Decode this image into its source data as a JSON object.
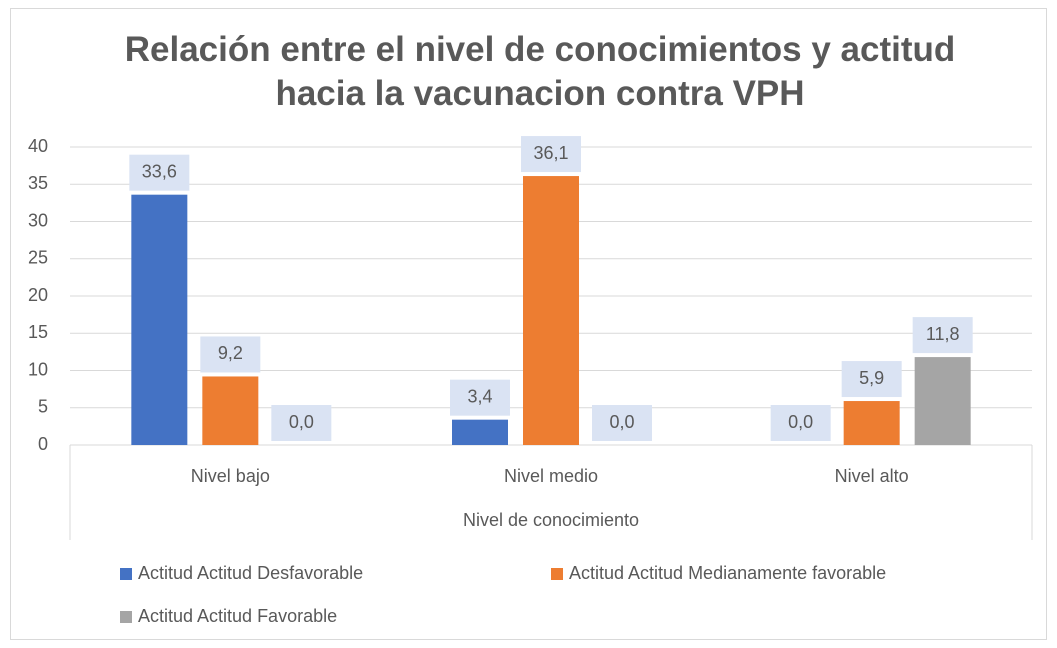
{
  "chart_data": {
    "type": "bar",
    "title": "Relación entre el nivel de conocimientos y actitud hacia la vacunacion contra VPH",
    "x_label": "Nivel de conocimiento",
    "categories": [
      "Nivel bajo",
      "Nivel medio",
      "Nivel alto"
    ],
    "series": [
      {
        "name": "Actitud Actitud Desfavorable",
        "color": "#4472c4",
        "values": [
          33.6,
          3.4,
          0.0
        ],
        "value_labels": [
          "33,6",
          "3,4",
          "0,0"
        ]
      },
      {
        "name": "Actitud Actitud Medianamente favorable",
        "color": "#ed7d31",
        "values": [
          9.2,
          36.1,
          5.9
        ],
        "value_labels": [
          "9,2",
          "36,1",
          "5,9"
        ]
      },
      {
        "name": "Actitud Actitud Favorable",
        "color": "#a5a5a5",
        "values": [
          0.0,
          0.0,
          11.8
        ],
        "value_labels": [
          "0,0",
          "0,0",
          "11,8"
        ]
      }
    ],
    "ylim": [
      0,
      40
    ],
    "yticks": [
      0,
      5,
      10,
      15,
      20,
      25,
      30,
      35,
      40
    ],
    "grid": true,
    "legend": "bottom"
  }
}
